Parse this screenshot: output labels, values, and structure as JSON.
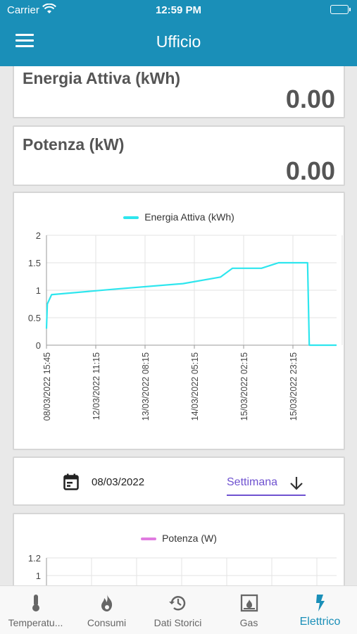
{
  "status_bar": {
    "carrier": "Carrier",
    "time": "12:59 PM"
  },
  "header": {
    "title": "Ufficio"
  },
  "energy_card": {
    "label": "Energia Attiva (kWh)",
    "value": "0.00"
  },
  "power_card": {
    "label": "Potenza (kW)",
    "value": "0.00"
  },
  "chart_data": [
    {
      "type": "line",
      "legend": [
        "Energia Attiva (kWh)"
      ],
      "series": [
        {
          "name": "Energia Attiva (kWh)",
          "color": "#2ee6ee",
          "x": [
            0,
            0.05,
            0.3,
            4,
            8,
            10.2,
            10.9,
            12.6,
            13.6,
            15.3,
            15.4,
            17
          ],
          "y": [
            0.3,
            0.75,
            0.92,
            1.02,
            1.12,
            1.24,
            1.4,
            1.4,
            1.5,
            1.5,
            0,
            0
          ]
        }
      ],
      "xtick_labels": [
        "08/03/2022 15:45",
        "12/03/2022 11:15",
        "13/03/2022 08:15",
        "14/03/2022 05:15",
        "15/03/2022 02:15",
        "15/03/2022 23:15"
      ],
      "yticks": [
        "0",
        "0.5",
        "1",
        "1.5",
        "2"
      ],
      "ylim": [
        0,
        2
      ],
      "grid": true,
      "legend_position": "top"
    },
    {
      "type": "line",
      "legend": [
        "Potenza (W)"
      ],
      "series": [
        {
          "name": "Potenza (W)",
          "color": "#e07be0",
          "x": [],
          "y": []
        }
      ],
      "yticks": [
        "1",
        "1.2"
      ],
      "grid": true,
      "legend_position": "top"
    }
  ],
  "date_selector": {
    "date": "08/03/2022",
    "period": "Settimana"
  },
  "tabs": [
    {
      "label": "Temperatu...",
      "icon": "thermometer-icon"
    },
    {
      "label": "Consumi",
      "icon": "flame-icon"
    },
    {
      "label": "Dati Storici",
      "icon": "history-icon"
    },
    {
      "label": "Gas",
      "icon": "fireplace-icon"
    },
    {
      "label": "Elettrico",
      "icon": "lightning-icon"
    }
  ],
  "colors": {
    "header": "#1a8fb8",
    "accent": "#6f52d0",
    "energy_line": "#2ee6ee",
    "power_line": "#e07be0",
    "active_tab": "#1a8fb8"
  }
}
